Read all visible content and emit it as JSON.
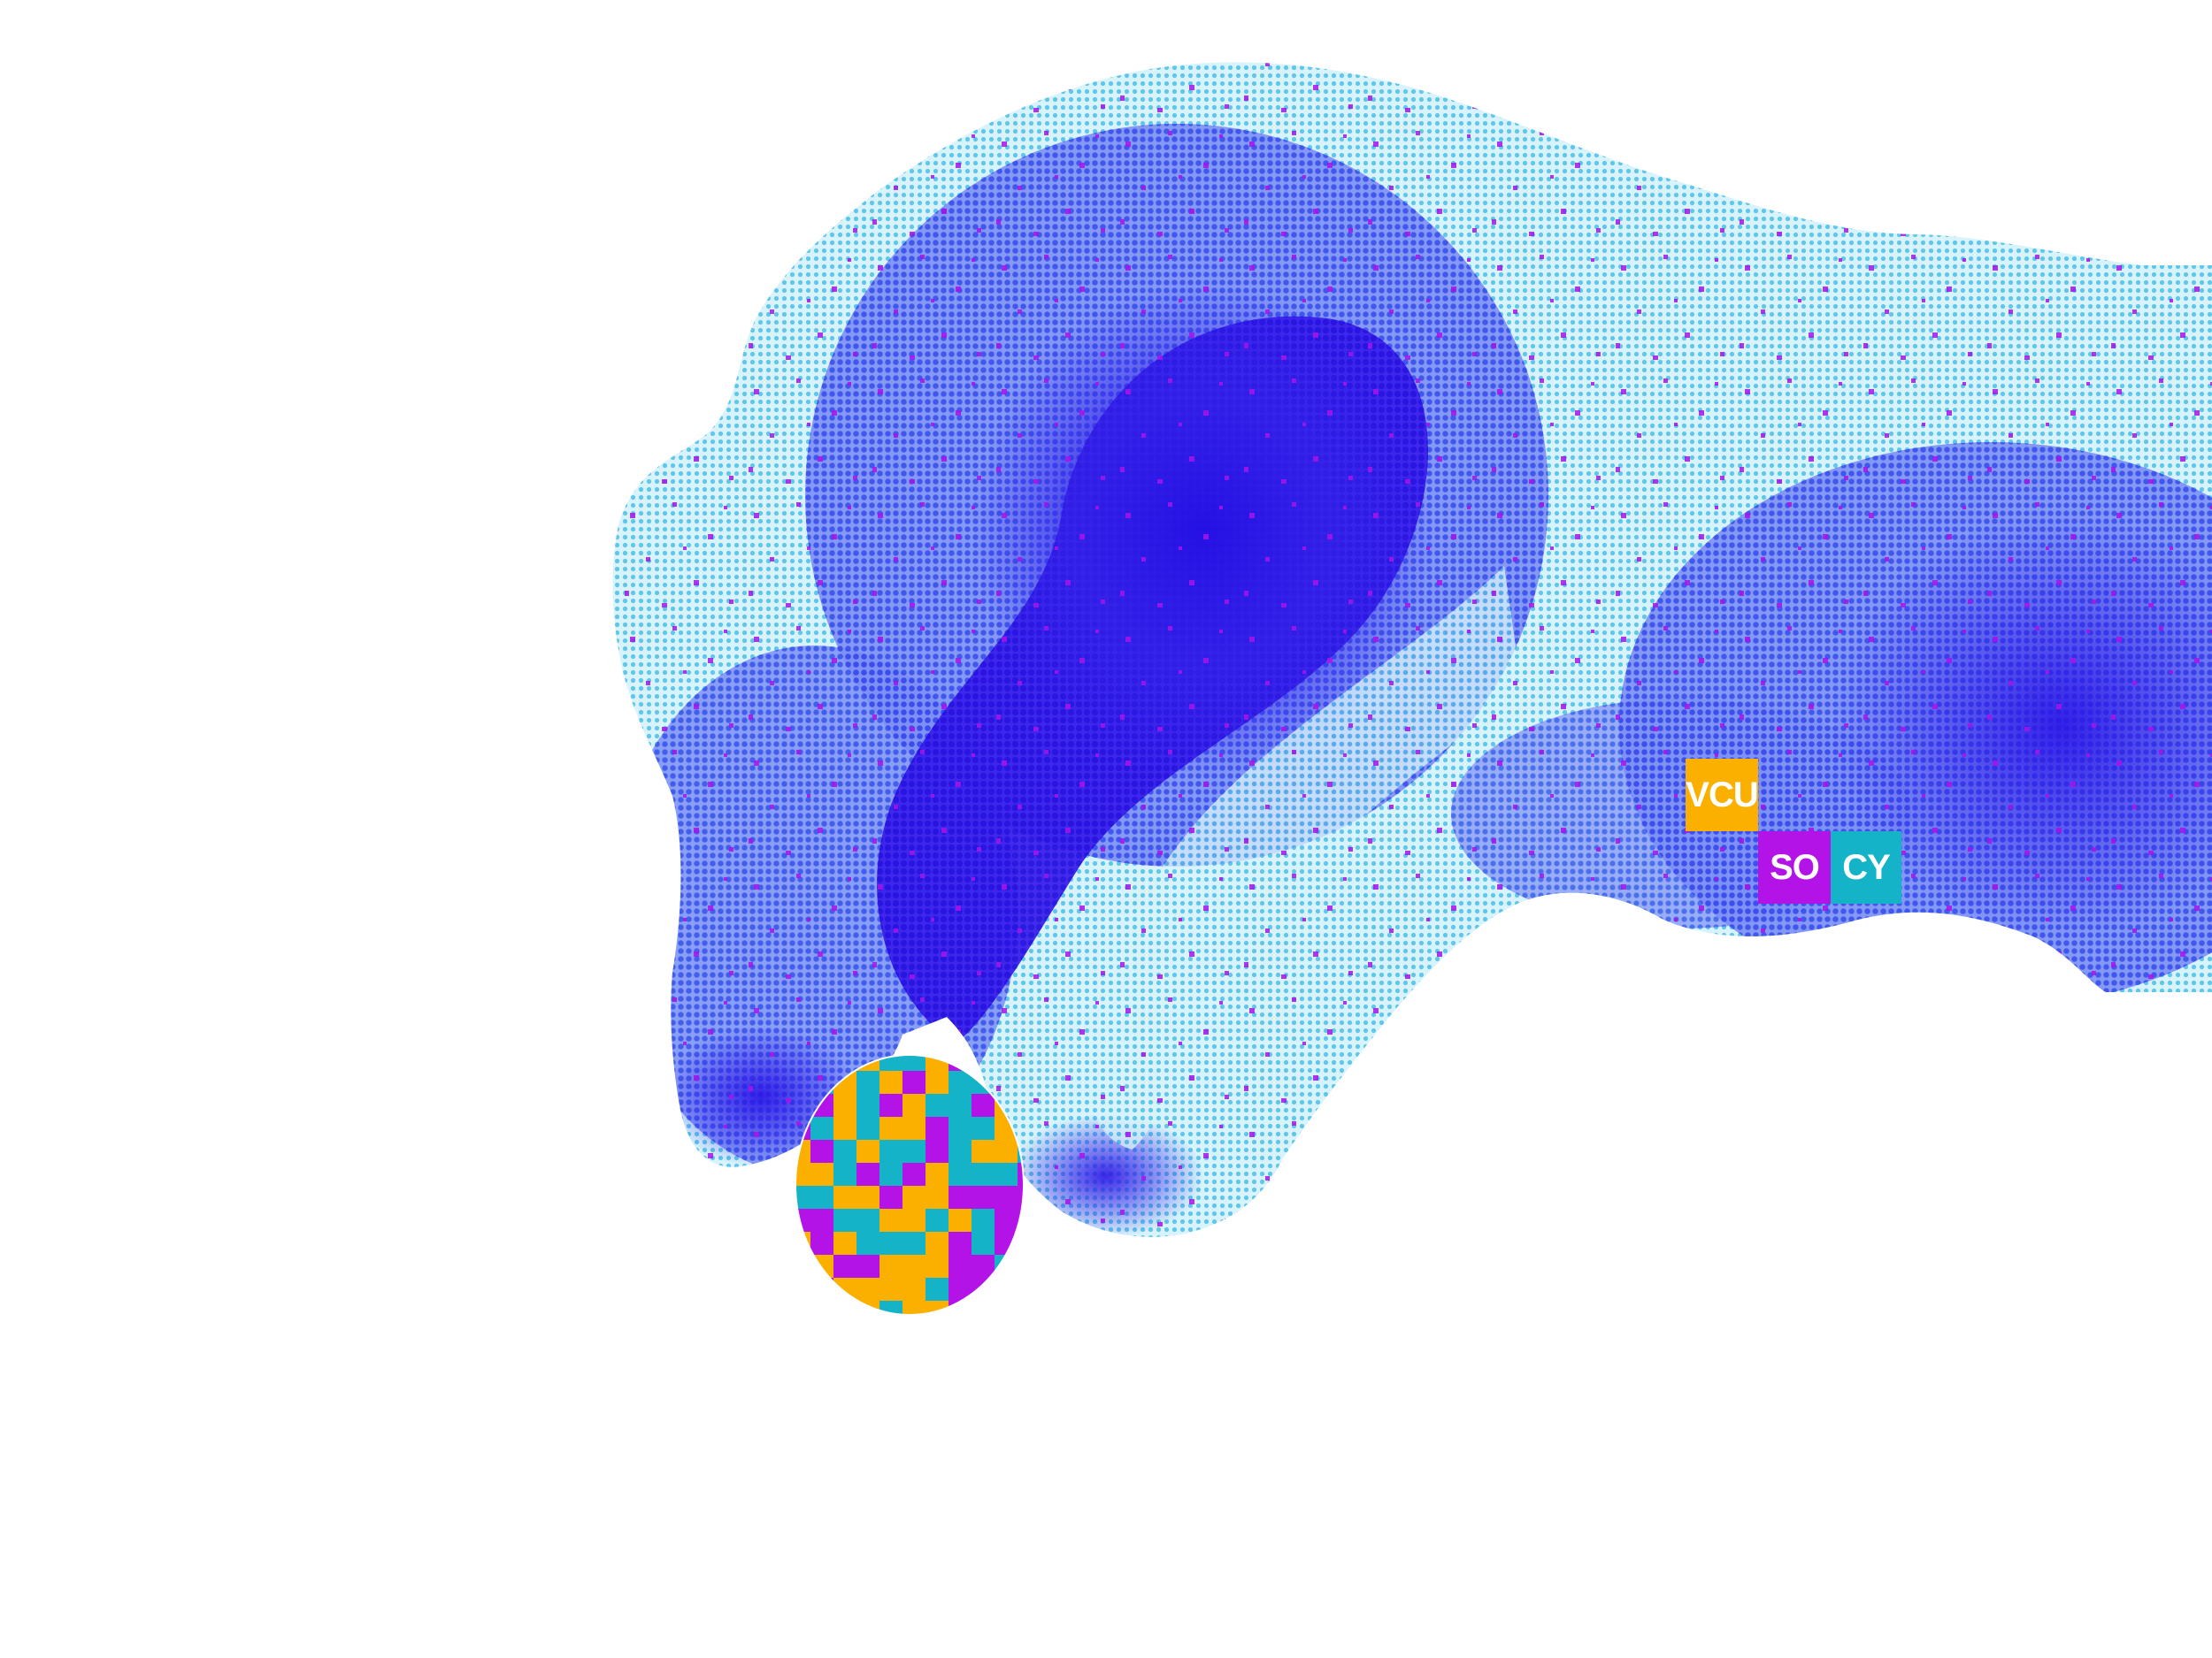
{
  "illustration": {
    "subject": "halftone-hand-holding-coin",
    "colors": {
      "background": "#ffffff",
      "hand_light": "#7fd3ee",
      "hand_mid": "#3c5cf0",
      "hand_deep": "#2a12e6",
      "speckle": "#a514e8",
      "coin_orange": "#fbb000",
      "coin_cyan": "#14b3c8",
      "coin_purple": "#b413e8"
    }
  },
  "logo": {
    "line1": "VCU",
    "line2a": "SO",
    "line2b": "CY",
    "colors": {
      "vcu_bg": "#fbb000",
      "so_bg": "#b413e8",
      "cy_bg": "#14b3c8",
      "text": "#ffffff"
    }
  }
}
